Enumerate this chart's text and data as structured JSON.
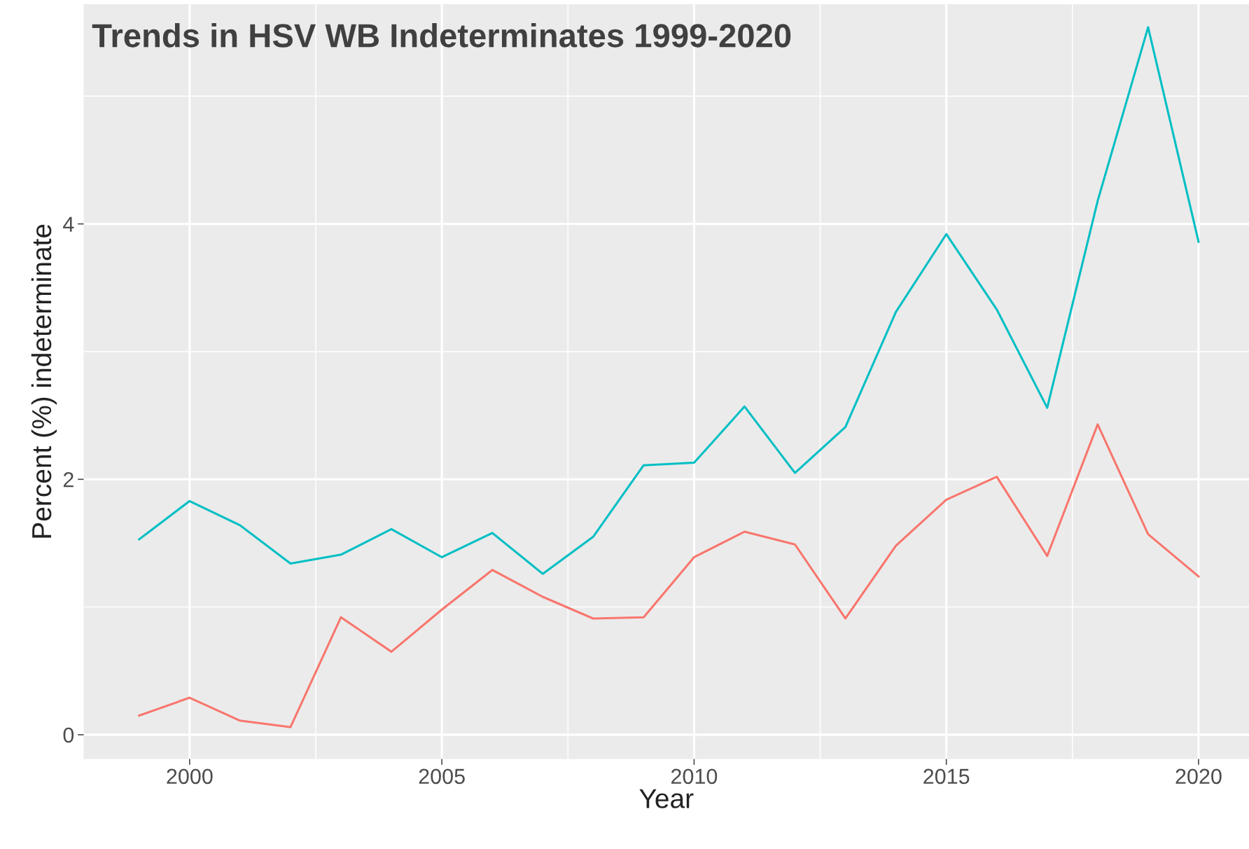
{
  "chart_data": {
    "type": "line",
    "title": "Trends in HSV WB Indeterminates 1999-2020",
    "xlabel": "Year",
    "ylabel": "Percent (%) indeterminate",
    "x": [
      1999,
      2000,
      2001,
      2002,
      2003,
      2004,
      2005,
      2006,
      2007,
      2008,
      2009,
      2010,
      2011,
      2012,
      2013,
      2014,
      2015,
      2016,
      2017,
      2018,
      2019,
      2020
    ],
    "series": [
      {
        "color": "#00bfc4",
        "values": [
          1.53,
          1.83,
          1.64,
          1.34,
          1.41,
          1.61,
          1.39,
          1.58,
          1.26,
          1.55,
          2.11,
          2.13,
          2.57,
          2.05,
          2.41,
          3.31,
          3.92,
          3.33,
          2.56,
          4.18,
          5.54,
          3.86
        ]
      },
      {
        "color": "#f8766d",
        "values": [
          0.15,
          0.29,
          0.11,
          0.06,
          0.92,
          0.65,
          0.98,
          1.29,
          1.08,
          0.91,
          0.92,
          1.39,
          1.59,
          1.49,
          0.91,
          1.48,
          1.84,
          2.02,
          1.4,
          2.43,
          1.57,
          1.24
        ]
      }
    ],
    "xlim": [
      1997.9,
      2021.0
    ],
    "ylim": [
      -0.19,
      5.72
    ],
    "xticks": [
      2000,
      2005,
      2010,
      2015,
      2020
    ],
    "yticks": [
      0,
      2,
      4
    ],
    "grid": true,
    "marker": "none",
    "line_style": "solid"
  }
}
